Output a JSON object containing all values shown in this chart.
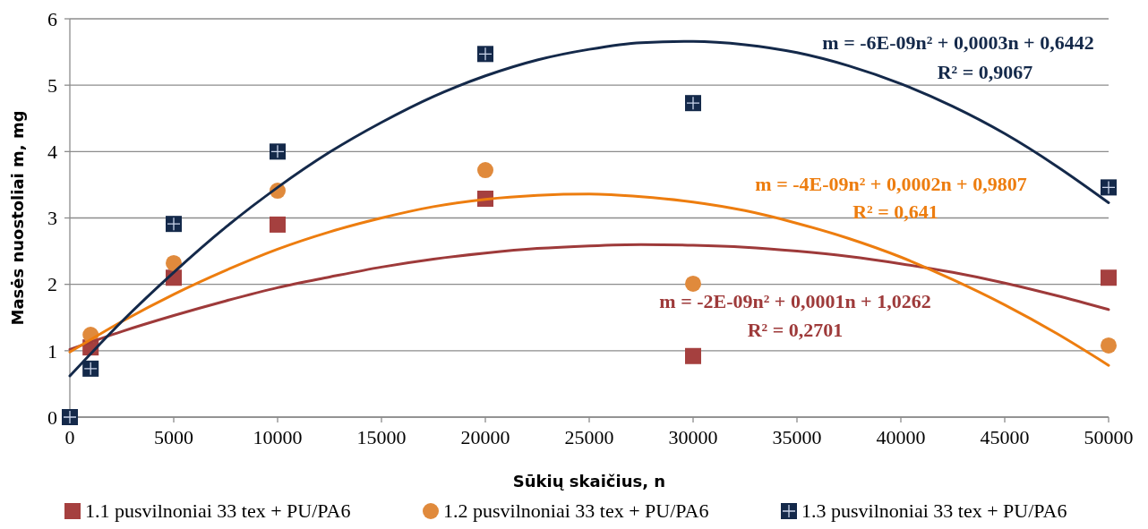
{
  "chart_data": {
    "type": "scatter",
    "xlabel": "Sūkių skaičius, n",
    "ylabel": "Masės nuostoliai m, mg",
    "x": [
      0,
      1000,
      5000,
      10000,
      20000,
      30000,
      50000
    ],
    "xlim": [
      0,
      50000
    ],
    "xticks": [
      0,
      5000,
      10000,
      15000,
      20000,
      25000,
      30000,
      35000,
      40000,
      45000,
      50000
    ],
    "ylim": [
      0,
      6
    ],
    "yticks": [
      0,
      1,
      2,
      3,
      4,
      5,
      6
    ],
    "grid": "y",
    "legend": "bottom",
    "series": [
      {
        "name": "1.1 pusvilnoniai 33 tex + PU/PA6",
        "color": "#a5403f",
        "marker": "square",
        "values": [
          null,
          1.05,
          2.1,
          2.9,
          3.29,
          0.92,
          2.1
        ]
      },
      {
        "name": "1.2 pusvilnoniai 33 tex + PU/PA6",
        "color": "#e08a3c",
        "marker": "circle",
        "values": [
          null,
          1.24,
          2.32,
          3.41,
          3.72,
          2.01,
          1.08
        ]
      },
      {
        "name": "1.3 pusvilnoniai 33 tex + PU/PA6",
        "color": "#14294a",
        "marker": "square",
        "values": [
          0,
          0.73,
          2.91,
          4.0,
          5.47,
          4.73,
          3.46
        ]
      },
      {
        "type": "line",
        "color": "#9e3a3a",
        "marker": "none",
        "x": [
          0,
          2500,
          5000,
          7500,
          10000,
          12500,
          15000,
          17500,
          20000,
          22500,
          25000,
          27500,
          30000,
          32500,
          35000,
          37500,
          40000,
          42500,
          45000,
          47500,
          50000
        ],
        "values": [
          1.02,
          1.29,
          1.53,
          1.75,
          1.95,
          2.11,
          2.26,
          2.38,
          2.47,
          2.54,
          2.58,
          2.6,
          2.59,
          2.56,
          2.5,
          2.42,
          2.31,
          2.18,
          2.02,
          1.83,
          1.62
        ]
      },
      {
        "type": "line",
        "color": "#ed7d0f",
        "marker": "none",
        "x": [
          0,
          2500,
          5000,
          7500,
          10000,
          12500,
          15000,
          17500,
          20000,
          22500,
          25000,
          27500,
          30000,
          32500,
          35000,
          37500,
          40000,
          42500,
          45000,
          47500,
          50000
        ],
        "values": [
          0.98,
          1.44,
          1.85,
          2.21,
          2.53,
          2.79,
          3.0,
          3.17,
          3.28,
          3.34,
          3.36,
          3.32,
          3.24,
          3.11,
          2.92,
          2.69,
          2.41,
          2.07,
          1.69,
          1.26,
          0.78
        ]
      },
      {
        "type": "line",
        "color": "#14294a",
        "marker": "none",
        "x": [
          0,
          2500,
          5000,
          7500,
          10000,
          12500,
          15000,
          17500,
          20000,
          22500,
          25000,
          27500,
          30000,
          32500,
          35000,
          37500,
          40000,
          42500,
          45000,
          47500,
          50000
        ],
        "values": [
          0.62,
          1.44,
          2.18,
          2.86,
          3.46,
          3.99,
          4.44,
          4.83,
          5.14,
          5.38,
          5.54,
          5.64,
          5.66,
          5.61,
          5.49,
          5.29,
          5.02,
          4.68,
          4.27,
          3.78,
          3.23
        ]
      }
    ],
    "annotations": [
      "m = -6E-09n² + 0,0003n + 0,6442",
      "R² = 0,9067",
      "m = -4E-09n² + 0,0002n + 0,9807",
      "R² = 0,641",
      "m = -2E-09n² + 0,0001n + 1,0262",
      "R² = 0,2701"
    ]
  }
}
